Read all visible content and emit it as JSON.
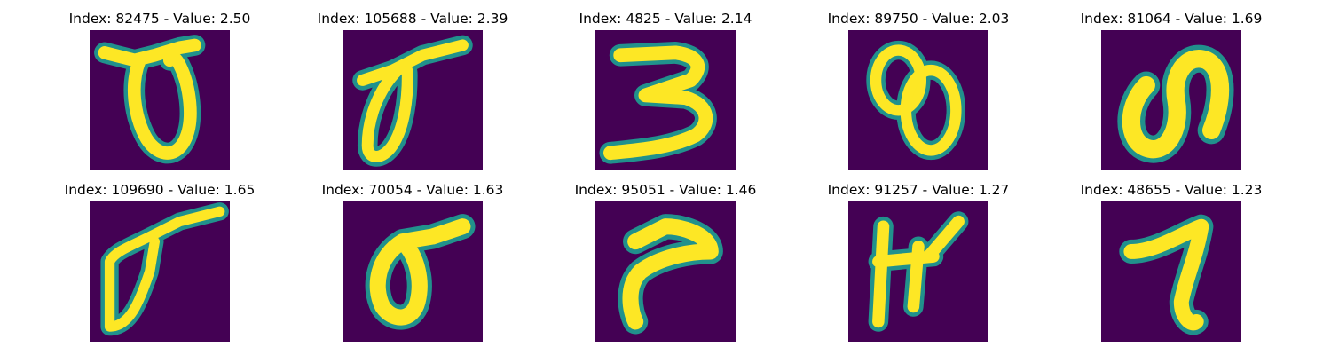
{
  "palette": {
    "background": "#440154",
    "mid": "#21918c",
    "high": "#fde725"
  },
  "grid": [
    {
      "title": "Index: 82475 - Value: 2.50",
      "glyph": "stroke-loop-with-crossbar"
    },
    {
      "title": "Index: 105688 - Value: 2.39",
      "glyph": "slanted-loop-with-tail"
    },
    {
      "title": "Index: 4825 - Value: 2.14",
      "glyph": "digit-three"
    },
    {
      "title": "Index: 89750 - Value: 2.03",
      "glyph": "double-loop"
    },
    {
      "title": "Index: 81064 - Value: 1.69",
      "glyph": "loop-with-hook"
    },
    {
      "title": "Index: 109690 - Value: 1.65",
      "glyph": "narrow-loop-long-tail"
    },
    {
      "title": "Index: 70054 - Value: 1.63",
      "glyph": "sigma-loop"
    },
    {
      "title": "Index: 95051 - Value: 1.46",
      "glyph": "curved-hook"
    },
    {
      "title": "Index: 91257 - Value: 1.27",
      "glyph": "h-shape"
    },
    {
      "title": "Index: 48655 - Value: 1.23",
      "glyph": "digit-seven"
    }
  ]
}
